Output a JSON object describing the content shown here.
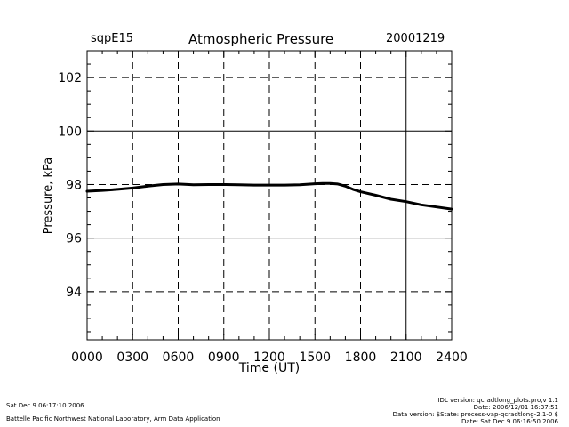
{
  "header": {
    "station": "sqpE15",
    "title": "Atmospheric Pressure",
    "date": "20001219"
  },
  "chart_data": {
    "type": "line",
    "title": "Atmospheric Pressure",
    "xlabel": "Time (UT)",
    "ylabel": "Pressure, kPa",
    "xlim": [
      0,
      2400
    ],
    "ylim": [
      92.2,
      103
    ],
    "x_ticks": [
      "0000",
      "0300",
      "0600",
      "0900",
      "1200",
      "1500",
      "1800",
      "2100",
      "2400"
    ],
    "y_ticks": [
      "94",
      "96",
      "98",
      "100",
      "102"
    ],
    "grid": "dashed at major ticks; solid at 96, 100 and 2100",
    "series": [
      {
        "x": [
          0,
          100,
          200,
          300,
          400,
          500,
          600,
          700,
          800,
          900,
          1000,
          1100,
          1200,
          1300,
          1400,
          1500,
          1550,
          1600,
          1650,
          1700,
          1750,
          1800,
          1900,
          2000,
          2100,
          2200,
          2300,
          2400
        ],
        "values": [
          97.75,
          97.78,
          97.82,
          97.87,
          97.94,
          98.0,
          98.02,
          97.99,
          98.0,
          98.0,
          97.99,
          97.98,
          97.98,
          97.98,
          97.99,
          98.03,
          98.04,
          98.04,
          98.02,
          97.94,
          97.82,
          97.73,
          97.6,
          97.45,
          97.36,
          97.24,
          97.16,
          97.08
        ]
      }
    ]
  },
  "footer": {
    "left_timestamp": "Sat Dec  9 06:17:10 2006",
    "left_credit": "Battelle Pacific Northwest National Laboratory, Arm Data Application",
    "right_lines": [
      "IDL version: qcradtlong_plots.pro,v 1.1",
      "Date: 2006/12/01 16:37:51",
      "Data version: $State: process-vap-qcradtlong-2.1-0 $",
      "Date: Sat Dec  9 06:16:50 2006"
    ]
  }
}
